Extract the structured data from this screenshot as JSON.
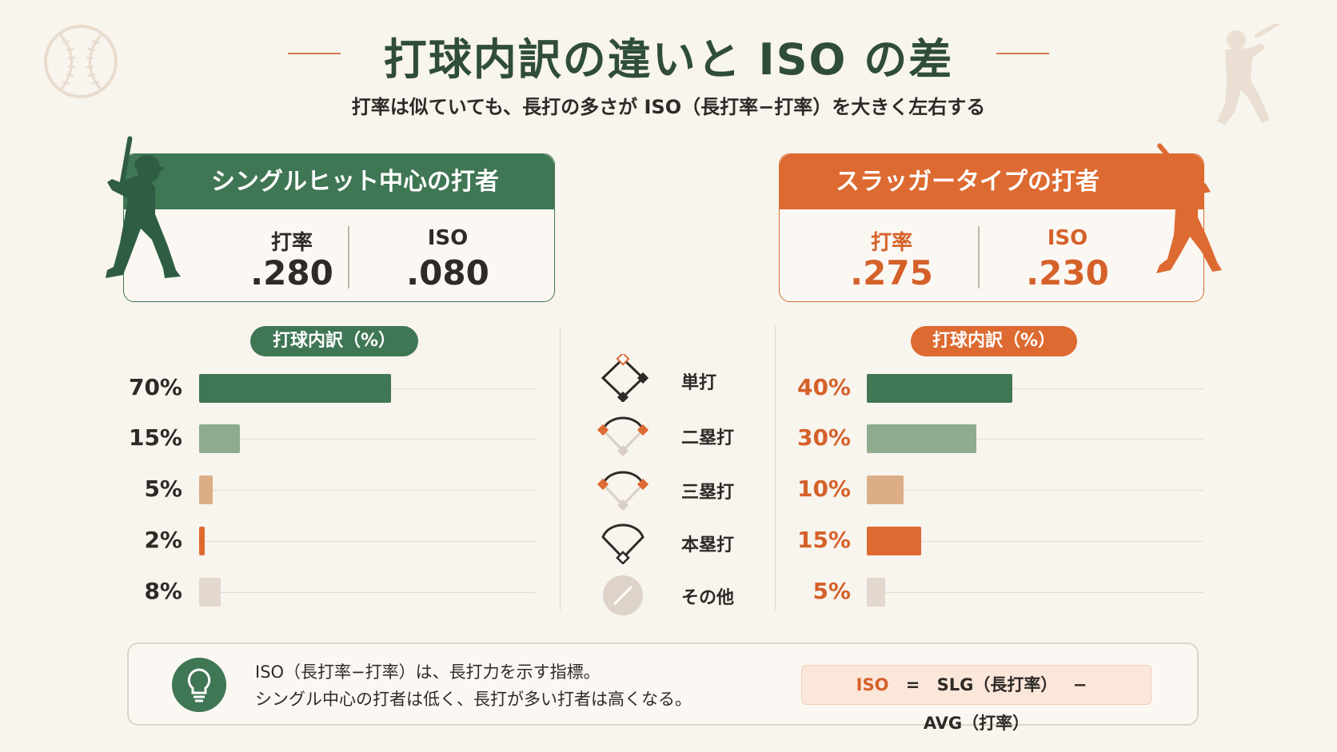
{
  "title": "打球内訳の違いと ISO の差",
  "subtitle": "打率は似ていても、長打の多さが ISO（長打率−打率）を大きく左右する",
  "colors": {
    "green_dark": "#3f7654",
    "green_light": "#8fab8d",
    "orange": "#dd6a31",
    "tan": "#dcae86",
    "beige": "#e3d8ce",
    "orange_text": "#d5612a"
  },
  "left_player": {
    "title": "シングルヒット中心の打者",
    "avg_label": "打率",
    "avg_value": ".280",
    "iso_label": "ISO",
    "iso_value": ".080",
    "breakdown_label": "打球内訳（%）"
  },
  "right_player": {
    "title": "スラッガータイプの打者",
    "avg_label": "打率",
    "avg_value": ".275",
    "iso_label": "ISO",
    "iso_value": ".230",
    "breakdown_label": "打球内訳（%）"
  },
  "hit_types": [
    {
      "label": "単打",
      "icon": "single-diamond-icon"
    },
    {
      "label": "二塁打",
      "icon": "double-diamond-icon"
    },
    {
      "label": "三塁打",
      "icon": "triple-diamond-icon"
    },
    {
      "label": "本塁打",
      "icon": "homerun-diamond-icon"
    },
    {
      "label": "その他",
      "icon": "other-slash-icon"
    }
  ],
  "chart_data": [
    {
      "type": "bar",
      "categories": [
        "単打",
        "二塁打",
        "三塁打",
        "本塁打",
        "その他"
      ],
      "values": [
        70,
        15,
        5,
        2,
        8
      ],
      "value_labels": [
        "70%",
        "15%",
        "5%",
        "2%",
        "8%"
      ],
      "title": "打球内訳（%）",
      "xlim": [
        0,
        100
      ]
    },
    {
      "type": "bar",
      "categories": [
        "単打",
        "二塁打",
        "三塁打",
        "本塁打",
        "その他"
      ],
      "values": [
        40,
        30,
        10,
        15,
        5
      ],
      "value_labels": [
        "40%",
        "30%",
        "10%",
        "15%",
        "5%"
      ],
      "title": "打球内訳（%）",
      "xlim": [
        0,
        65
      ]
    }
  ],
  "note": {
    "line1": "ISO（長打率−打率）は、長打力を示す指標。",
    "line2": "シングル中心の打者は低く、長打が多い打者は高くなる。",
    "icon": "lightbulb-icon"
  },
  "formula": {
    "iso": "ISO",
    "eq": "=",
    "slg": "SLG（長打率）",
    "minus": "−",
    "avg": "AVG（打率）"
  }
}
